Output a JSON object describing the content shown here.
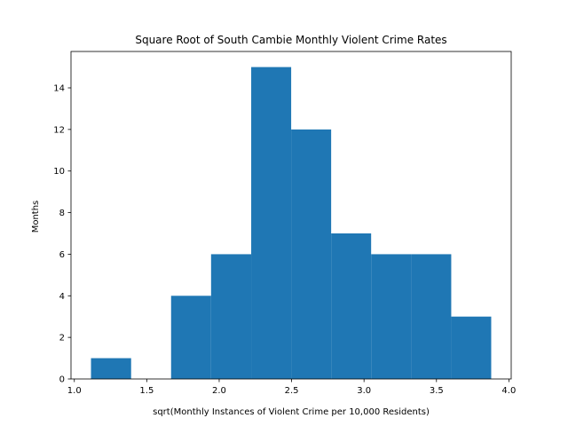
{
  "chart_data": {
    "type": "bar",
    "title": "Square Root of South Cambie Monthly Violent Crime Rates",
    "xlabel": "sqrt(Monthly Instances of Violent Crime per 10,000 Residents)",
    "ylabel": "Months",
    "bin_edges": [
      1.115,
      1.392,
      1.668,
      1.944,
      2.221,
      2.497,
      2.773,
      3.049,
      3.326,
      3.602,
      3.878
    ],
    "values": [
      1,
      0,
      4,
      6,
      15,
      12,
      7,
      6,
      6,
      3
    ],
    "xlim": [
      0.977,
      4.016
    ],
    "ylim": [
      0,
      15.75
    ],
    "xticks": [
      1.0,
      1.5,
      2.0,
      2.5,
      3.0,
      3.5,
      4.0
    ],
    "xtick_labels": [
      "1.0",
      "1.5",
      "2.0",
      "2.5",
      "3.0",
      "3.5",
      "4.0"
    ],
    "yticks": [
      0,
      2,
      4,
      6,
      8,
      10,
      12,
      14
    ],
    "ytick_labels": [
      "0",
      "2",
      "4",
      "6",
      "8",
      "10",
      "12",
      "14"
    ],
    "bar_color": "#1f77b4",
    "grid": false,
    "legend": "none"
  }
}
